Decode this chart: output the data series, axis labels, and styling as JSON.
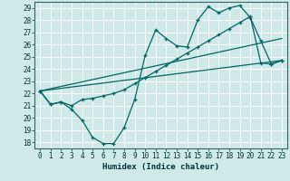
{
  "xlabel": "Humidex (Indice chaleur)",
  "bg_color": "#cfe8e8",
  "grid_color": "#ffffff",
  "line_color": "#006666",
  "xlim": [
    -0.5,
    23.5
  ],
  "ylim": [
    17.5,
    29.5
  ],
  "yticks": [
    18,
    19,
    20,
    21,
    22,
    23,
    24,
    25,
    26,
    27,
    28,
    29
  ],
  "xticks": [
    0,
    1,
    2,
    3,
    4,
    5,
    6,
    7,
    8,
    9,
    10,
    11,
    12,
    13,
    14,
    15,
    16,
    17,
    18,
    19,
    20,
    21,
    22,
    23
  ],
  "curve1_x": [
    0,
    1,
    2,
    3,
    4,
    5,
    6,
    7,
    8,
    9,
    10,
    11,
    12,
    13,
    14,
    15,
    16,
    17,
    18,
    19,
    20,
    21,
    22,
    23
  ],
  "curve1_y": [
    22.2,
    21.1,
    21.3,
    20.7,
    19.8,
    18.4,
    17.9,
    17.9,
    19.2,
    21.5,
    25.1,
    27.2,
    26.5,
    25.9,
    25.8,
    28.0,
    29.1,
    28.6,
    29.0,
    29.2,
    28.2,
    26.3,
    24.4,
    24.7
  ],
  "curve2_x": [
    0,
    1,
    2,
    3,
    4,
    5,
    6,
    7,
    8,
    9,
    10,
    11,
    12,
    13,
    14,
    15,
    16,
    17,
    18,
    19,
    20,
    21,
    22,
    23
  ],
  "curve2_y": [
    22.2,
    21.1,
    21.3,
    21.0,
    21.5,
    21.6,
    21.8,
    22.0,
    22.3,
    22.8,
    23.3,
    23.8,
    24.3,
    24.8,
    25.3,
    25.8,
    26.3,
    26.8,
    27.3,
    27.8,
    28.3,
    24.5,
    24.4,
    24.7
  ],
  "line1_x": [
    0,
    23
  ],
  "line1_y": [
    22.2,
    26.5
  ],
  "line2_x": [
    0,
    23
  ],
  "line2_y": [
    22.2,
    24.7
  ]
}
